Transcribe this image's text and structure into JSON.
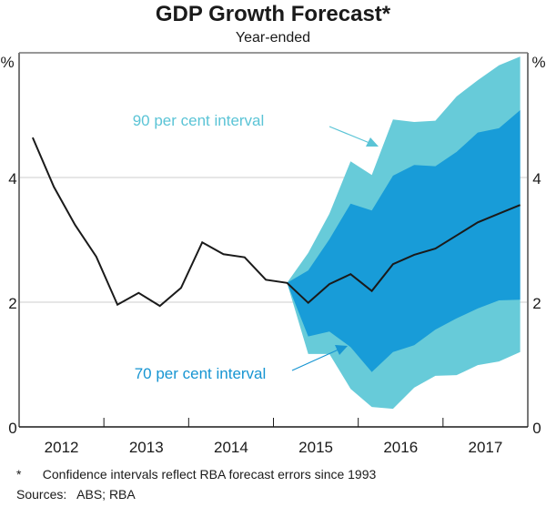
{
  "chart_data": {
    "type": "area",
    "title": "GDP Growth Forecast*",
    "subtitle": "Year-ended",
    "ylabel_left": "%",
    "ylabel_right": "%",
    "ylim": [
      0,
      6
    ],
    "yticks": [
      0,
      2,
      4
    ],
    "xlim": [
      2012.0,
      2018.0
    ],
    "xtick_labels": [
      "2012",
      "2013",
      "2014",
      "2015",
      "2016",
      "2017"
    ],
    "grid": true,
    "colors": {
      "line": "#1a1a1a",
      "band90": "#67CBD9",
      "band70": "#189CD8",
      "gridline": "#cccccc",
      "axis": "#777777"
    },
    "central": {
      "name": "GDP growth (year-ended)",
      "x": [
        2012.16,
        2012.41,
        2012.66,
        2012.91,
        2013.16,
        2013.41,
        2013.66,
        2013.91,
        2014.16,
        2014.41,
        2014.66,
        2014.91,
        2015.16,
        2015.41,
        2015.66,
        2015.91,
        2016.16,
        2016.41,
        2016.66,
        2016.91,
        2017.16,
        2017.41,
        2017.66,
        2017.91
      ],
      "values": [
        4.64,
        3.85,
        3.24,
        2.73,
        1.96,
        2.15,
        1.94,
        2.23,
        2.96,
        2.77,
        2.72,
        2.36,
        2.31,
        1.99,
        2.29,
        2.45,
        2.18,
        2.61,
        2.76,
        2.86,
        3.07,
        3.28,
        3.42,
        3.56
      ]
    },
    "bands": {
      "x": [
        2015.16,
        2015.41,
        2015.66,
        2015.91,
        2016.16,
        2016.41,
        2016.66,
        2016.91,
        2017.16,
        2017.41,
        2017.66,
        2017.91
      ],
      "p90_upper": [
        2.31,
        2.79,
        3.42,
        4.26,
        4.04,
        4.93,
        4.89,
        4.91,
        5.3,
        5.56,
        5.8,
        5.94
      ],
      "p70_upper": [
        2.31,
        2.51,
        3.01,
        3.58,
        3.47,
        4.03,
        4.2,
        4.18,
        4.41,
        4.72,
        4.79,
        5.08
      ],
      "p70_lower": [
        2.31,
        1.45,
        1.53,
        1.28,
        0.88,
        1.2,
        1.31,
        1.56,
        1.74,
        1.9,
        2.03,
        2.04
      ],
      "p90_lower": [
        2.31,
        1.17,
        1.17,
        0.61,
        0.32,
        0.29,
        0.63,
        0.82,
        0.83,
        0.99,
        1.05,
        1.2
      ]
    },
    "annotations": [
      {
        "text": "90 per cent interval",
        "color": "#5BC4D6",
        "target_band": "p90"
      },
      {
        "text": "70 per cent interval",
        "color": "#1795D2",
        "target_band": "p70"
      }
    ]
  },
  "footnote": "*      Confidence intervals reflect RBA forecast errors since 1993",
  "sources": "Sources:   ABS; RBA"
}
